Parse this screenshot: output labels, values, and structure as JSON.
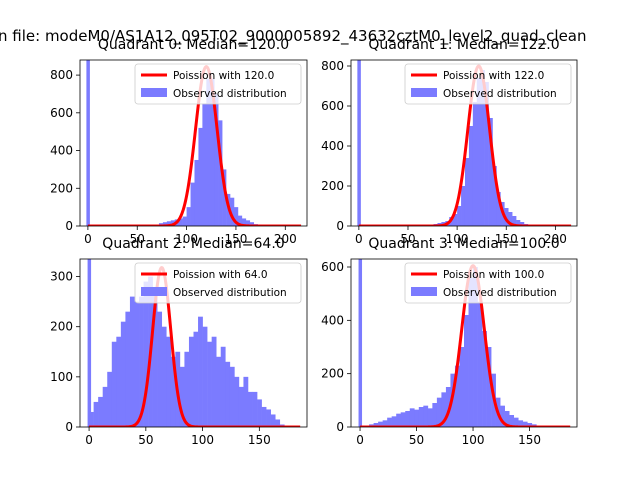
{
  "figure": {
    "suptitle": "n file: modeM0/AS1A12_095T02_9000005892_43632cztM0_level2_quad_clean"
  },
  "colors": {
    "hist": "#7b7bff",
    "poisson": "#ff0000",
    "axis": "#000000",
    "legend_border": "#cccccc"
  },
  "chart_data": [
    {
      "type": "bar",
      "title": "Quadrant 0: Median=120.0",
      "median": 120.0,
      "xlim": [
        -8,
        222
      ],
      "ylim": [
        0,
        880
      ],
      "xticks": [
        0,
        50,
        100,
        150,
        200
      ],
      "yticks": [
        0,
        200,
        400,
        600,
        800
      ],
      "legend": [
        "Poission with 120.0",
        "Observed distribution"
      ],
      "legend_position": "top-right",
      "bin_width": 4,
      "zero_spike": 880,
      "poisson_mean": 120,
      "poisson_peak": 845,
      "histogram": [
        [
          72,
          15
        ],
        [
          76,
          20
        ],
        [
          80,
          25
        ],
        [
          84,
          30
        ],
        [
          88,
          35
        ],
        [
          92,
          40
        ],
        [
          96,
          50
        ],
        [
          100,
          100
        ],
        [
          104,
          230
        ],
        [
          108,
          350
        ],
        [
          112,
          520
        ],
        [
          116,
          650
        ],
        [
          120,
          780
        ],
        [
          124,
          780
        ],
        [
          128,
          700
        ],
        [
          132,
          560
        ],
        [
          136,
          300
        ],
        [
          140,
          170
        ],
        [
          144,
          150
        ],
        [
          148,
          100
        ],
        [
          152,
          55
        ],
        [
          156,
          40
        ],
        [
          160,
          30
        ],
        [
          164,
          20
        ],
        [
          168,
          10
        ],
        [
          172,
          8
        ]
      ]
    },
    {
      "type": "bar",
      "title": "Quadrant 1: Median=122.0",
      "median": 122.0,
      "xlim": [
        -8,
        222
      ],
      "ylim": [
        0,
        830
      ],
      "xticks": [
        0,
        50,
        100,
        150,
        200
      ],
      "yticks": [
        0,
        200,
        400,
        600,
        800
      ],
      "legend": [
        "Poission with 122.0",
        "Observed distribution"
      ],
      "legend_position": "top-right",
      "bin_width": 4,
      "zero_spike": 830,
      "poisson_mean": 122,
      "poisson_peak": 800,
      "histogram": [
        [
          76,
          10
        ],
        [
          80,
          15
        ],
        [
          84,
          20
        ],
        [
          88,
          25
        ],
        [
          92,
          45
        ],
        [
          96,
          60
        ],
        [
          100,
          100
        ],
        [
          104,
          200
        ],
        [
          108,
          340
        ],
        [
          112,
          500
        ],
        [
          116,
          620
        ],
        [
          120,
          740
        ],
        [
          124,
          780
        ],
        [
          128,
          720
        ],
        [
          132,
          540
        ],
        [
          136,
          300
        ],
        [
          140,
          170
        ],
        [
          144,
          120
        ],
        [
          148,
          90
        ],
        [
          152,
          70
        ],
        [
          156,
          50
        ],
        [
          160,
          30
        ],
        [
          164,
          20
        ],
        [
          168,
          10
        ]
      ]
    },
    {
      "type": "bar",
      "title": "Quadrant 2: Median=64.0",
      "median": 64.0,
      "xlim": [
        -8,
        192
      ],
      "ylim": [
        0,
        335
      ],
      "xticks": [
        0,
        50,
        100,
        150
      ],
      "yticks": [
        0,
        100,
        200,
        300
      ],
      "legend": [
        "Poission with 64.0",
        "Observed distribution"
      ],
      "legend_position": "top-right",
      "bin_width": 4,
      "zero_spike": 335,
      "poisson_mean": 64,
      "poisson_peak": 318,
      "histogram": [
        [
          0,
          30
        ],
        [
          4,
          50
        ],
        [
          8,
          60
        ],
        [
          12,
          80
        ],
        [
          16,
          110
        ],
        [
          20,
          170
        ],
        [
          24,
          180
        ],
        [
          28,
          210
        ],
        [
          32,
          230
        ],
        [
          36,
          260
        ],
        [
          40,
          250
        ],
        [
          44,
          260
        ],
        [
          48,
          290
        ],
        [
          52,
          300
        ],
        [
          56,
          270
        ],
        [
          60,
          230
        ],
        [
          64,
          200
        ],
        [
          68,
          180
        ],
        [
          72,
          140
        ],
        [
          76,
          150
        ],
        [
          80,
          120
        ],
        [
          84,
          150
        ],
        [
          88,
          180
        ],
        [
          92,
          190
        ],
        [
          96,
          220
        ],
        [
          100,
          200
        ],
        [
          104,
          170
        ],
        [
          108,
          180
        ],
        [
          112,
          140
        ],
        [
          116,
          160
        ],
        [
          120,
          130
        ],
        [
          124,
          120
        ],
        [
          128,
          100
        ],
        [
          132,
          80
        ],
        [
          136,
          100
        ],
        [
          140,
          70
        ],
        [
          144,
          70
        ],
        [
          148,
          55
        ],
        [
          152,
          40
        ],
        [
          156,
          35
        ],
        [
          160,
          25
        ],
        [
          164,
          15
        ],
        [
          168,
          5
        ]
      ]
    },
    {
      "type": "bar",
      "title": "Quadrant 3: Median=100.0",
      "median": 100.0,
      "xlim": [
        -8,
        192
      ],
      "ylim": [
        0,
        630
      ],
      "xticks": [
        0,
        50,
        100,
        150
      ],
      "yticks": [
        0,
        200,
        400,
        600
      ],
      "legend": [
        "Poission with 100.0",
        "Observed distribution"
      ],
      "legend_position": "top-right",
      "bin_width": 4,
      "zero_spike": 630,
      "poisson_mean": 100,
      "poisson_peak": 605,
      "histogram": [
        [
          8,
          10
        ],
        [
          12,
          15
        ],
        [
          16,
          20
        ],
        [
          20,
          25
        ],
        [
          24,
          35
        ],
        [
          28,
          40
        ],
        [
          32,
          50
        ],
        [
          36,
          55
        ],
        [
          40,
          60
        ],
        [
          44,
          70
        ],
        [
          48,
          65
        ],
        [
          52,
          75
        ],
        [
          56,
          80
        ],
        [
          60,
          70
        ],
        [
          64,
          90
        ],
        [
          68,
          110
        ],
        [
          72,
          130
        ],
        [
          76,
          150
        ],
        [
          80,
          200
        ],
        [
          84,
          230
        ],
        [
          88,
          300
        ],
        [
          92,
          420
        ],
        [
          96,
          560
        ],
        [
          100,
          600
        ],
        [
          104,
          470
        ],
        [
          108,
          360
        ],
        [
          112,
          300
        ],
        [
          116,
          200
        ],
        [
          120,
          110
        ],
        [
          124,
          80
        ],
        [
          128,
          60
        ],
        [
          132,
          45
        ],
        [
          136,
          35
        ],
        [
          140,
          25
        ],
        [
          144,
          20
        ],
        [
          148,
          15
        ],
        [
          152,
          10
        ]
      ]
    }
  ]
}
